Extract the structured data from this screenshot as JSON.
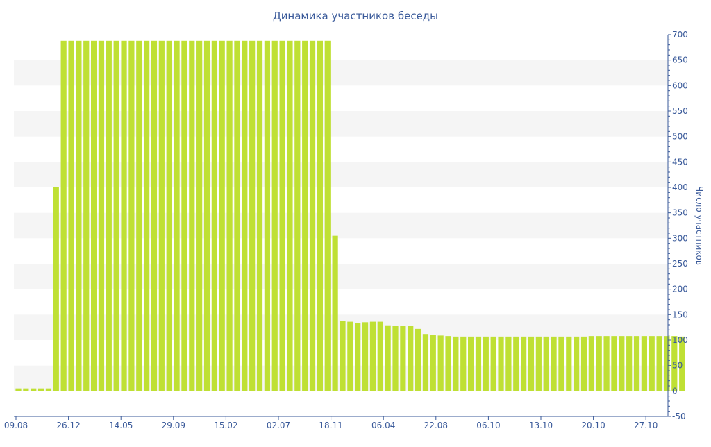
{
  "chart_data": {
    "type": "bar",
    "title": "Динамика участников беседы",
    "ylabel": "Число участников",
    "xlabel": "",
    "ylim": [
      -50,
      700
    ],
    "y_ticks": [
      -50,
      0,
      50,
      100,
      150,
      200,
      250,
      300,
      350,
      400,
      450,
      500,
      550,
      600,
      650,
      700
    ],
    "y_axis_position": "right",
    "grid": "alternating horizontal bands",
    "legend": "none",
    "x_tick_labels": [
      "09.08",
      "26.12",
      "14.05",
      "29.09",
      "15.02",
      "02.07",
      "18.11",
      "06.04",
      "22.08",
      "06.10",
      "13.10",
      "20.10",
      "27.10"
    ],
    "values": [
      5,
      5,
      5,
      5,
      5,
      400,
      688,
      688,
      688,
      688,
      688,
      688,
      688,
      688,
      688,
      688,
      688,
      688,
      688,
      688,
      688,
      688,
      688,
      688,
      688,
      688,
      688,
      688,
      688,
      688,
      688,
      688,
      688,
      688,
      688,
      688,
      688,
      688,
      688,
      688,
      688,
      688,
      305,
      138,
      136,
      134,
      135,
      136,
      136,
      129,
      128,
      128,
      128,
      122,
      112,
      110,
      109,
      108,
      107,
      107,
      107,
      107,
      107,
      107,
      107,
      107,
      107,
      107,
      107,
      107,
      107,
      107,
      107,
      107,
      107,
      107,
      108,
      108,
      108,
      108,
      108,
      108,
      108,
      108,
      108,
      108,
      108,
      108,
      107
    ],
    "colors": {
      "bar": "#bfe034",
      "text": "#3a5a9a",
      "axis": "#3a5a9a",
      "band": "#f5f5f5"
    }
  }
}
